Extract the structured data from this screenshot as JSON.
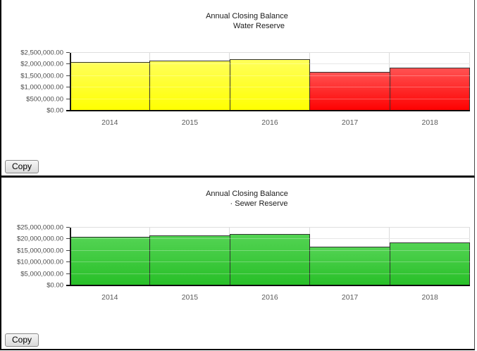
{
  "buttons": {
    "copy": "Copy"
  },
  "colors": {
    "yellow_top": "#ffff5a",
    "yellow_bottom": "#ffff00",
    "red_top": "#ff5252",
    "red_bottom": "#fe0000",
    "green_top": "#53d353",
    "green_bottom": "#27bf27",
    "bar_border": "#333333"
  },
  "chart_data": [
    {
      "type": "bar",
      "title": "Annual Closing Balance",
      "subtitle": "Water Reserve",
      "categories": [
        "2014",
        "2015",
        "2016",
        "2017",
        "2018"
      ],
      "values": [
        2100000,
        2170000,
        2230000,
        1670000,
        1860000
      ],
      "bar_colors": [
        "yellow",
        "yellow",
        "yellow",
        "red",
        "red"
      ],
      "ylim": [
        0,
        2500000
      ],
      "ytick_labels": [
        "$0.00",
        "$500,000.00",
        "$1,000,000.00",
        "$1,500,000.00",
        "$2,000,000.00",
        "$2,500,000.00"
      ],
      "xlabel": "",
      "ylabel": "",
      "grid": true,
      "legend": false
    },
    {
      "type": "bar",
      "title": "Annual Closing Balance",
      "subtitle": "· Sewer Reserve",
      "categories": [
        "2014",
        "2015",
        "2016",
        "2017",
        "2018"
      ],
      "values": [
        21000000,
        21700000,
        22300000,
        16700000,
        18600000
      ],
      "bar_colors": [
        "green",
        "green",
        "green",
        "green",
        "green"
      ],
      "ylim": [
        0,
        25000000
      ],
      "ytick_labels": [
        "$0.00",
        "$5,000,000.00",
        "$10,000,000.00",
        "$15,000,000.00",
        "$20,000,000.00",
        "$25,000,000.00"
      ],
      "xlabel": "",
      "ylabel": "",
      "grid": true,
      "legend": false
    }
  ]
}
